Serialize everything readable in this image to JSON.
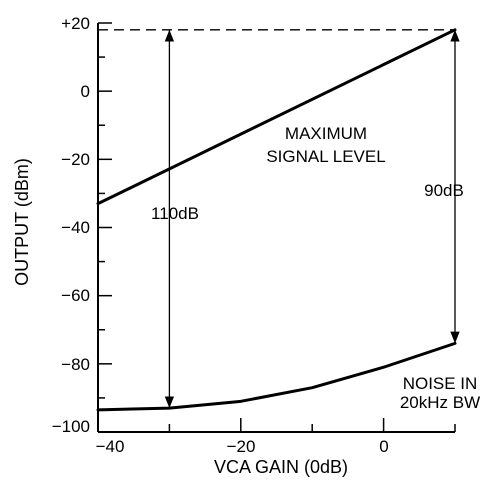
{
  "chart_data": {
    "type": "line",
    "xlabel": "VCA GAIN (0dB)",
    "ylabel": "OUTPUT (dBm)",
    "xlim": [
      -40,
      10
    ],
    "ylim": [
      -100,
      20
    ],
    "x_ticks": [
      -40,
      -20,
      0
    ],
    "x_tick_labels": [
      "−40",
      "−20",
      "0"
    ],
    "y_ticks": [
      20,
      0,
      -20,
      -40,
      -60,
      -80,
      -100
    ],
    "y_tick_labels": [
      "+20",
      "0",
      "−20",
      "−40",
      "−60",
      "−80",
      "−100"
    ],
    "series": [
      {
        "x": [
          -40,
          10
        ],
        "y": [
          -33,
          18
        ]
      },
      {
        "x": [
          -40,
          -30,
          -20,
          -10,
          0,
          10
        ],
        "y": [
          -93.5,
          -93,
          -91,
          -87,
          -81,
          -74
        ]
      }
    ],
    "annotations": {
      "max_signal": [
        "MAXIMUM",
        "SIGNAL LEVEL"
      ],
      "noise": [
        "NOISE IN",
        "20kHz BW"
      ],
      "left_span": "110dB",
      "right_span": "90dB"
    },
    "dimension_lines": {
      "left": {
        "x": -30,
        "y_from": 18,
        "y_to": -93
      },
      "right": {
        "x": 10,
        "y_from": 18,
        "y_to": -74
      }
    },
    "reference_line": {
      "y": 18,
      "x_from": -40,
      "x_to": 10
    },
    "grid": false
  }
}
